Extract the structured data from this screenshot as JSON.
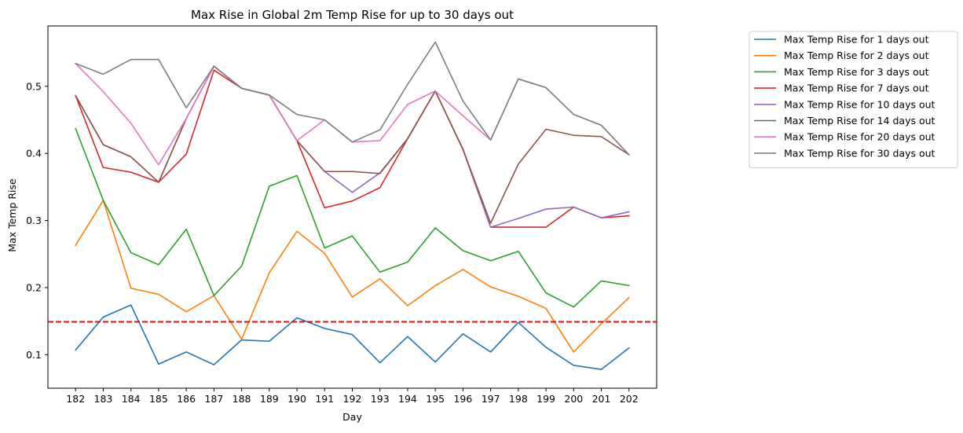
{
  "chart_data": {
    "type": "line",
    "title": "Max Rise in Global 2m Temp Rise for up to 30 days out",
    "xlabel": "Day",
    "ylabel": "Max Temp Rise",
    "x": [
      182,
      183,
      184,
      185,
      186,
      187,
      188,
      189,
      190,
      191,
      192,
      193,
      194,
      195,
      196,
      197,
      198,
      199,
      200,
      201,
      202
    ],
    "xlim": [
      181,
      203
    ],
    "ylim": [
      0.05,
      0.59
    ],
    "yticks": [
      0.1,
      0.2,
      0.3,
      0.4,
      0.5
    ],
    "grid": false,
    "legend_position": "outside-right-top",
    "reference_line": {
      "y": 0.149,
      "color": "#ff0000",
      "style": "dashed"
    },
    "series": [
      {
        "name": "Max Temp Rise for 1 days out",
        "color": "#1f77b4",
        "values": [
          0.107,
          0.156,
          0.174,
          0.086,
          0.104,
          0.085,
          0.122,
          0.12,
          0.155,
          0.139,
          0.13,
          0.088,
          0.127,
          0.089,
          0.131,
          0.104,
          0.148,
          0.111,
          0.084,
          0.078,
          0.11
        ]
      },
      {
        "name": "Max Temp Rise for 2 days out",
        "color": "#ff7f0e",
        "values": [
          0.263,
          0.33,
          0.199,
          0.19,
          0.164,
          0.188,
          0.123,
          0.222,
          0.284,
          0.251,
          0.186,
          0.213,
          0.173,
          0.203,
          0.227,
          0.201,
          0.187,
          0.169,
          0.104,
          0.146,
          0.185
        ]
      },
      {
        "name": "Max Temp Rise for 3 days out",
        "color": "#2ca02c",
        "values": [
          0.437,
          0.33,
          0.252,
          0.234,
          0.287,
          0.188,
          0.232,
          0.351,
          0.367,
          0.259,
          0.277,
          0.223,
          0.238,
          0.289,
          0.255,
          0.24,
          0.254,
          0.192,
          0.171,
          0.21,
          0.203
        ]
      },
      {
        "name": "Max Temp Rise for 7 days out",
        "color": "#d62728",
        "values": [
          0.486,
          0.379,
          0.372,
          0.357,
          0.399,
          0.524,
          0.497,
          0.487,
          0.419,
          0.319,
          0.329,
          0.349,
          0.422,
          0.493,
          0.406,
          0.29,
          0.29,
          0.29,
          0.32,
          0.304,
          0.307
        ]
      },
      {
        "name": "Max Temp Rise for 10 days out",
        "color": "#9467bd",
        "values": [
          0.486,
          0.413,
          0.395,
          0.357,
          0.452,
          0.53,
          0.497,
          0.487,
          0.419,
          0.373,
          0.342,
          0.371,
          0.422,
          0.493,
          0.406,
          0.29,
          0.303,
          0.317,
          0.32,
          0.304,
          0.313
        ]
      },
      {
        "name": "Max Temp Rise for 14 days out",
        "color": "#8c564b",
        "values": [
          0.486,
          0.413,
          0.395,
          0.357,
          0.452,
          0.53,
          0.497,
          0.487,
          0.419,
          0.373,
          0.373,
          0.37,
          0.422,
          0.493,
          0.406,
          0.296,
          0.384,
          0.436,
          0.427,
          0.425,
          0.398
        ]
      },
      {
        "name": "Max Temp Rise for 20 days out",
        "color": "#e377c2",
        "values": [
          0.534,
          0.492,
          0.445,
          0.383,
          0.452,
          0.53,
          0.497,
          0.487,
          0.419,
          0.45,
          0.417,
          0.419,
          0.473,
          0.493,
          0.456,
          0.42,
          0.511,
          0.498,
          0.458,
          0.442,
          0.398
        ]
      },
      {
        "name": "Max Temp Rise for 30 days out",
        "color": "#7f7f7f",
        "values": [
          0.534,
          0.518,
          0.54,
          0.54,
          0.468,
          0.53,
          0.497,
          0.487,
          0.458,
          0.45,
          0.417,
          0.435,
          0.503,
          0.566,
          0.478,
          0.42,
          0.511,
          0.498,
          0.458,
          0.442,
          0.398
        ]
      }
    ]
  }
}
